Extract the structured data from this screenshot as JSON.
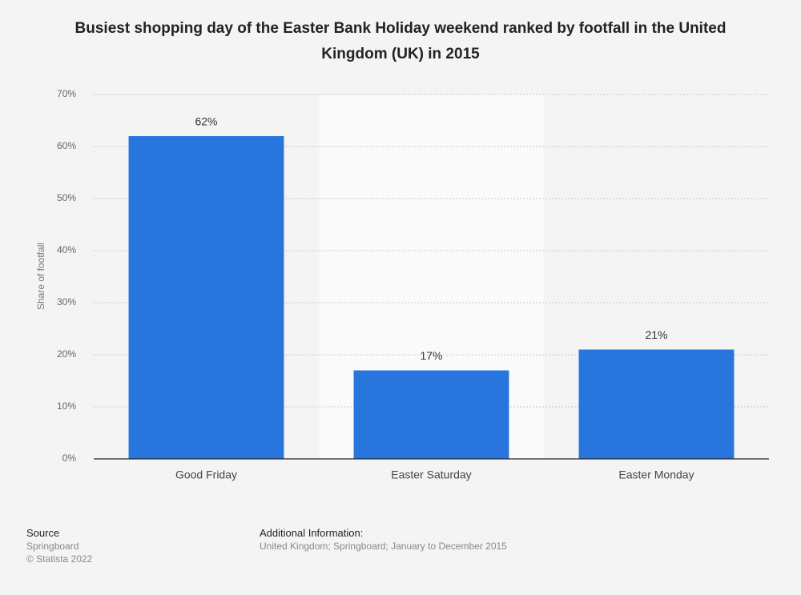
{
  "chart_data": {
    "type": "bar",
    "title": "Busiest shopping day of the Easter Bank Holiday weekend ranked by footfall in the United Kingdom (UK) in 2015",
    "y_label": "Share of footfall",
    "categories": [
      "Good Friday",
      "Easter Saturday",
      "Easter Monday"
    ],
    "values": [
      62,
      17,
      21
    ],
    "value_labels": [
      "62%",
      "17%",
      "21%"
    ],
    "color": "#2876dd",
    "ylim": [
      0,
      70
    ],
    "yticks": [
      {
        "value": 0,
        "label": "0%"
      },
      {
        "value": 10,
        "label": "10%"
      },
      {
        "value": 20,
        "label": "20%"
      },
      {
        "value": 30,
        "label": "30%"
      },
      {
        "value": 40,
        "label": "40%"
      },
      {
        "value": 50,
        "label": "50%"
      },
      {
        "value": 60,
        "label": "60%"
      },
      {
        "value": 70,
        "label": "70%"
      }
    ],
    "grid": true
  },
  "footer": {
    "source_label": "Source",
    "source": "Springboard",
    "copyright": "© Statista 2022",
    "info_label": "Additional Information:",
    "info": "United Kingdom; Springboard; January to December 2015"
  }
}
